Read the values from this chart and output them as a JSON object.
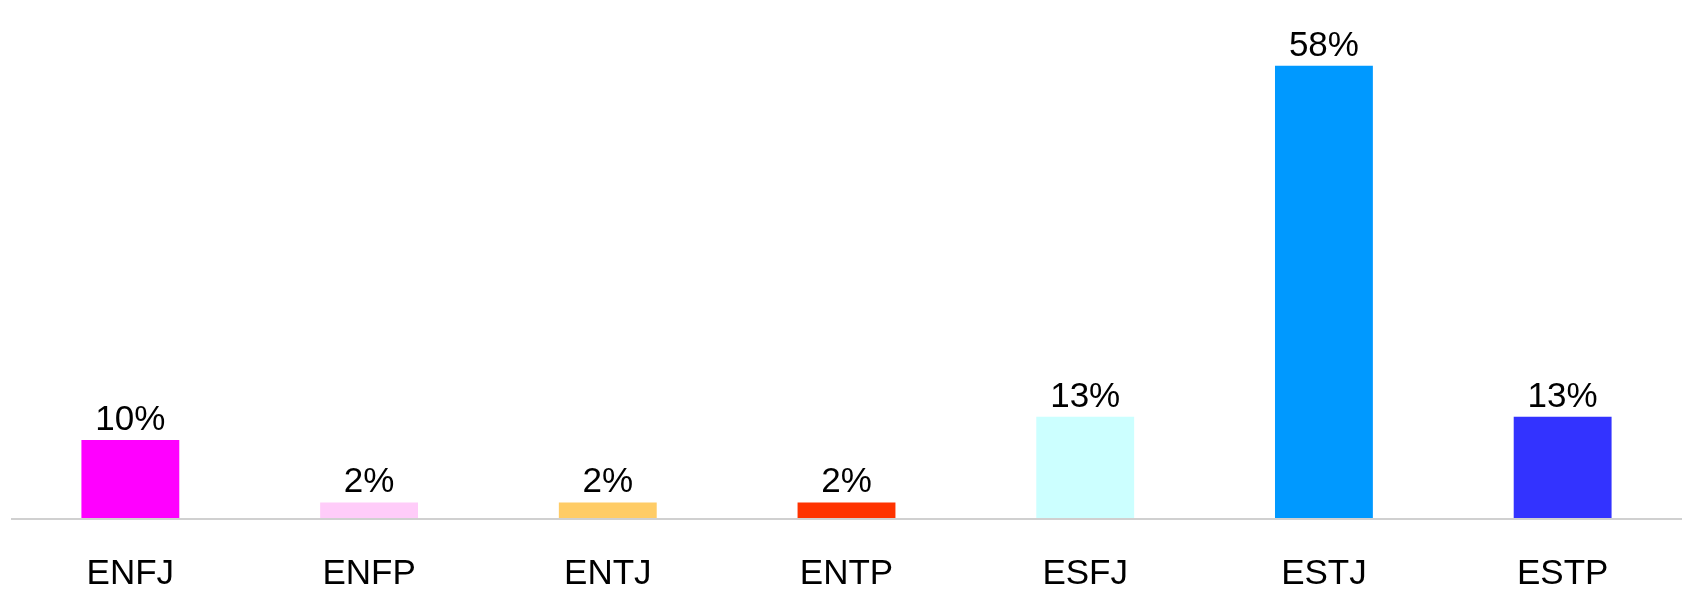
{
  "chart_data": {
    "type": "bar",
    "categories": [
      "ENFJ",
      "ENFP",
      "ENTJ",
      "ENTP",
      "ESFJ",
      "ESTJ",
      "ESTP"
    ],
    "values": [
      10,
      2,
      2,
      2,
      13,
      58,
      13
    ],
    "colors": [
      "#ff00ff",
      "#ffccf9",
      "#ffcc66",
      "#ff3300",
      "#ccffff",
      "#0099ff",
      "#3333ff"
    ],
    "value_labels": [
      "10%",
      "2%",
      "2%",
      "2%",
      "13%",
      "58%",
      "13%"
    ],
    "tick_labels": "x"
  }
}
